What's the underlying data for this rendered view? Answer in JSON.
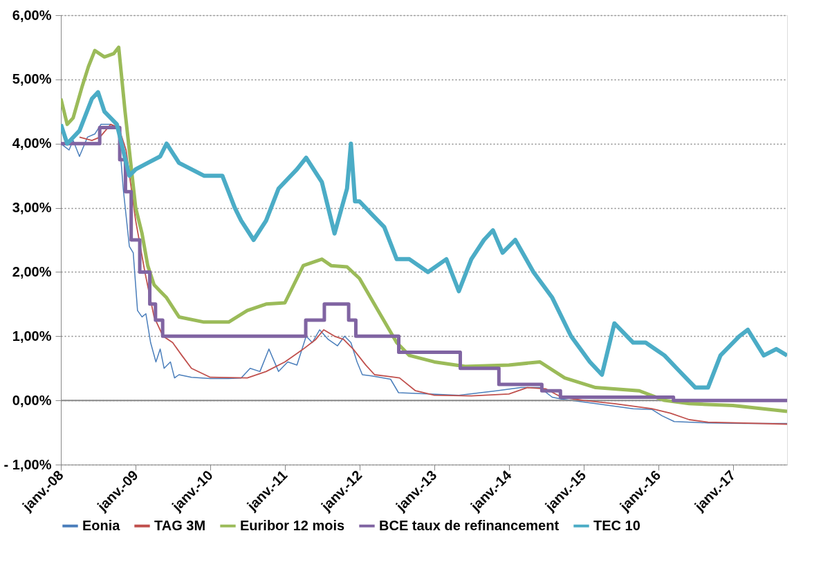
{
  "chart_data": {
    "type": "line",
    "xlim": [
      "2008-01-01",
      "2017-09-23"
    ],
    "xticks": [
      {
        "value": "2008-01-01",
        "label": "janv.-08"
      },
      {
        "value": "2009-01-01",
        "label": "janv.-09"
      },
      {
        "value": "2010-01-01",
        "label": "janv.-10"
      },
      {
        "value": "2011-01-01",
        "label": "janv.-11"
      },
      {
        "value": "2012-01-01",
        "label": "janv.-12"
      },
      {
        "value": "2013-01-01",
        "label": "janv.-13"
      },
      {
        "value": "2014-01-01",
        "label": "janv.-14"
      },
      {
        "value": "2015-01-01",
        "label": "janv.-15"
      },
      {
        "value": "2016-01-01",
        "label": "janv.-16"
      },
      {
        "value": "2017-01-01",
        "label": "janv.-17"
      }
    ],
    "ylim": [
      -1,
      6
    ],
    "yticks": [
      {
        "value": -1,
        "label": "- 1,00%"
      },
      {
        "value": 0,
        "label": "0,00%"
      },
      {
        "value": 1,
        "label": "1,00%"
      },
      {
        "value": 2,
        "label": "2,00%"
      },
      {
        "value": 3,
        "label": "3,00%"
      },
      {
        "value": 4,
        "label": "4,00%"
      },
      {
        "value": 5,
        "label": "5,00%"
      },
      {
        "value": 6,
        "label": "6,00%"
      }
    ],
    "grid": "y",
    "legend": "bottom",
    "marker": "none",
    "line_style": "solid",
    "ref_lines": [
      {
        "axis": "y",
        "value": 0,
        "color": "#898989"
      }
    ],
    "series": [
      {
        "name": "Eonia",
        "type": "line",
        "color": "#4a7ebb",
        "x": [
          "2008-01-01",
          "2008-02-10",
          "2008-03-01",
          "2008-04-01",
          "2008-05-10",
          "2008-06-15",
          "2008-07-15",
          "2008-09-01",
          "2008-10-10",
          "2008-11-01",
          "2008-12-01",
          "2008-12-20",
          "2009-01-10",
          "2009-02-01",
          "2009-02-20",
          "2009-03-15",
          "2009-04-10",
          "2009-05-01",
          "2009-05-20",
          "2009-06-20",
          "2009-07-10",
          "2009-08-01",
          "2009-10-01",
          "2010-01-01",
          "2010-04-01",
          "2010-06-01",
          "2010-07-15",
          "2010-09-01",
          "2010-10-15",
          "2010-12-01",
          "2011-01-15",
          "2011-03-01",
          "2011-04-15",
          "2011-05-15",
          "2011-06-20",
          "2011-08-01",
          "2011-09-15",
          "2011-10-20",
          "2011-11-20",
          "2011-12-20",
          "2012-01-15",
          "2012-03-01",
          "2012-06-01",
          "2012-07-10",
          "2012-12-01",
          "2013-05-01",
          "2013-11-01",
          "2014-03-01",
          "2014-06-01",
          "2014-08-01",
          "2014-09-15",
          "2015-03-01",
          "2015-09-01",
          "2015-12-01",
          "2016-01-20",
          "2016-03-20",
          "2016-09-01",
          "2017-03-01",
          "2017-09-23"
        ],
        "values": [
          4.0,
          3.9,
          4.05,
          3.8,
          4.1,
          4.15,
          4.3,
          4.3,
          4.2,
          3.3,
          2.4,
          2.3,
          1.4,
          1.3,
          1.35,
          0.9,
          0.6,
          0.8,
          0.5,
          0.6,
          0.35,
          0.4,
          0.36,
          0.34,
          0.34,
          0.35,
          0.5,
          0.45,
          0.8,
          0.45,
          0.6,
          0.55,
          1.0,
          0.9,
          1.1,
          0.95,
          0.85,
          1.0,
          0.9,
          0.6,
          0.4,
          0.38,
          0.33,
          0.12,
          0.1,
          0.08,
          0.15,
          0.2,
          0.2,
          0.05,
          0.02,
          -0.05,
          -0.13,
          -0.14,
          -0.24,
          -0.33,
          -0.35,
          -0.36,
          -0.36
        ]
      },
      {
        "name": "TAG 3M",
        "type": "line",
        "color": "#c0504d",
        "x": [
          "2008-04-01",
          "2008-06-01",
          "2008-07-10",
          "2008-09-01",
          "2008-10-10",
          "2008-11-15",
          "2009-01-01",
          "2009-02-15",
          "2009-04-01",
          "2009-05-15",
          "2009-07-01",
          "2009-08-15",
          "2009-10-01",
          "2010-01-01",
          "2010-07-01",
          "2010-10-01",
          "2011-01-01",
          "2011-04-01",
          "2011-06-01",
          "2011-07-10",
          "2011-09-01",
          "2011-10-15",
          "2011-12-01",
          "2012-02-01",
          "2012-03-15",
          "2012-06-01",
          "2012-07-15",
          "2012-10-01",
          "2013-01-01",
          "2013-07-01",
          "2014-01-01",
          "2014-04-01",
          "2014-07-01",
          "2014-09-15",
          "2015-01-01",
          "2015-06-01",
          "2015-12-01",
          "2016-03-01",
          "2016-06-01",
          "2016-09-01",
          "2017-09-23"
        ],
        "values": [
          4.1,
          4.05,
          4.1,
          4.3,
          4.25,
          3.9,
          2.8,
          2.0,
          1.3,
          1.0,
          0.9,
          0.7,
          0.5,
          0.36,
          0.35,
          0.45,
          0.6,
          0.8,
          0.95,
          1.1,
          1.0,
          0.95,
          0.8,
          0.55,
          0.4,
          0.37,
          0.35,
          0.15,
          0.08,
          0.07,
          0.1,
          0.2,
          0.18,
          0.05,
          0.0,
          -0.05,
          -0.13,
          -0.2,
          -0.3,
          -0.34,
          -0.37
        ]
      },
      {
        "name": "Euribor 12 mois",
        "type": "line",
        "color": "#9bbb59",
        "x": [
          "2008-01-01",
          "2008-02-01",
          "2008-03-01",
          "2008-04-15",
          "2008-05-15",
          "2008-06-15",
          "2008-08-01",
          "2008-09-15",
          "2008-10-10",
          "2008-11-10",
          "2009-01-01",
          "2009-02-01",
          "2009-03-01",
          "2009-04-01",
          "2009-05-01",
          "2009-06-01",
          "2009-08-01",
          "2009-12-01",
          "2010-04-01",
          "2010-07-01",
          "2010-10-01",
          "2011-01-01",
          "2011-04-01",
          "2011-07-01",
          "2011-08-15",
          "2011-11-01",
          "2012-01-01",
          "2012-04-01",
          "2012-07-01",
          "2012-09-01",
          "2013-01-01",
          "2013-06-01",
          "2014-01-01",
          "2014-06-01",
          "2014-10-01",
          "2015-03-01",
          "2015-10-01",
          "2016-02-01",
          "2016-06-01",
          "2017-01-01",
          "2017-09-23"
        ],
        "values": [
          4.7,
          4.3,
          4.4,
          4.9,
          5.2,
          5.45,
          5.35,
          5.4,
          5.5,
          4.5,
          3.0,
          2.6,
          2.1,
          1.8,
          1.7,
          1.6,
          1.3,
          1.22,
          1.22,
          1.4,
          1.5,
          1.52,
          2.1,
          2.2,
          2.1,
          2.08,
          1.9,
          1.4,
          0.9,
          0.7,
          0.6,
          0.53,
          0.55,
          0.6,
          0.35,
          0.2,
          0.15,
          0.0,
          -0.05,
          -0.08,
          -0.17
        ]
      },
      {
        "name": "BCE taux de refinancement",
        "type": "step",
        "color": "#8064a2",
        "x": [
          "2008-01-01",
          "2008-07-09",
          "2008-10-15",
          "2008-11-12",
          "2008-12-10",
          "2009-01-21",
          "2009-03-11",
          "2009-04-08",
          "2009-05-13",
          "2011-04-13",
          "2011-07-13",
          "2011-11-09",
          "2011-12-14",
          "2012-07-11",
          "2013-05-08",
          "2013-11-13",
          "2014-06-11",
          "2014-09-10",
          "2016-03-16",
          "2017-09-23"
        ],
        "values": [
          4.0,
          4.25,
          3.75,
          3.25,
          2.5,
          2.0,
          1.5,
          1.25,
          1.0,
          1.25,
          1.5,
          1.25,
          1.0,
          0.75,
          0.5,
          0.25,
          0.15,
          0.05,
          0.0,
          0.0
        ]
      },
      {
        "name": "TEC 10",
        "type": "line",
        "color": "#4bacc6",
        "x": [
          "2008-01-01",
          "2008-02-01",
          "2008-04-01",
          "2008-06-01",
          "2008-07-01",
          "2008-08-01",
          "2008-10-01",
          "2008-12-01",
          "2009-01-01",
          "2009-03-01",
          "2009-05-01",
          "2009-06-01",
          "2009-08-01",
          "2009-12-01",
          "2010-03-01",
          "2010-05-01",
          "2010-06-01",
          "2010-08-01",
          "2010-10-01",
          "2010-12-01",
          "2011-03-01",
          "2011-04-15",
          "2011-07-01",
          "2011-09-01",
          "2011-11-01",
          "2011-11-20",
          "2011-12-10",
          "2012-01-01",
          "2012-03-01",
          "2012-05-01",
          "2012-07-01",
          "2012-09-01",
          "2012-12-01",
          "2013-03-01",
          "2013-05-01",
          "2013-07-01",
          "2013-09-01",
          "2013-10-15",
          "2013-12-01",
          "2014-02-01",
          "2014-05-01",
          "2014-08-01",
          "2014-11-01",
          "2015-02-01",
          "2015-04-01",
          "2015-06-01",
          "2015-09-01",
          "2015-11-01",
          "2016-02-01",
          "2016-04-01",
          "2016-07-01",
          "2016-09-01",
          "2016-11-01",
          "2017-02-01",
          "2017-03-15",
          "2017-06-01",
          "2017-08-01",
          "2017-09-23"
        ],
        "values": [
          4.3,
          4.0,
          4.2,
          4.7,
          4.8,
          4.5,
          4.3,
          3.5,
          3.6,
          3.7,
          3.8,
          4.0,
          3.7,
          3.5,
          3.5,
          3.0,
          2.8,
          2.5,
          2.8,
          3.3,
          3.6,
          3.78,
          3.4,
          2.6,
          3.3,
          4.0,
          3.1,
          3.1,
          2.9,
          2.7,
          2.2,
          2.2,
          2.0,
          2.2,
          1.7,
          2.2,
          2.5,
          2.65,
          2.3,
          2.5,
          2.0,
          1.6,
          1.0,
          0.6,
          0.4,
          1.2,
          0.9,
          0.9,
          0.7,
          0.5,
          0.2,
          0.2,
          0.7,
          1.0,
          1.1,
          0.7,
          0.8,
          0.7
        ]
      }
    ]
  }
}
